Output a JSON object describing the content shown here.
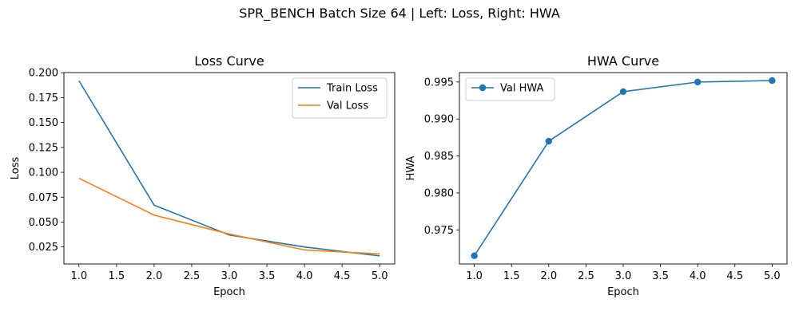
{
  "figure": {
    "suptitle": "SPR_BENCH Batch Size 64 | Left: Loss, Right: HWA"
  },
  "chart_data": [
    {
      "type": "line",
      "title": "Loss Curve",
      "xlabel": "Epoch",
      "ylabel": "Loss",
      "x": [
        1,
        2,
        3,
        4,
        5
      ],
      "xlim": [
        0.8,
        5.2
      ],
      "ylim": [
        0.0079,
        0.2002
      ],
      "xticks": [
        1.0,
        1.5,
        2.0,
        2.5,
        3.0,
        3.5,
        4.0,
        4.5,
        5.0
      ],
      "xtick_labels": [
        "1.0",
        "1.5",
        "2.0",
        "2.5",
        "3.0",
        "3.5",
        "4.0",
        "4.5",
        "5.0"
      ],
      "yticks": [
        0.025,
        0.05,
        0.075,
        0.1,
        0.125,
        0.15,
        0.175,
        0.2
      ],
      "ytick_labels": [
        "0.025",
        "0.050",
        "0.075",
        "0.100",
        "0.125",
        "0.150",
        "0.175",
        "0.200"
      ],
      "grid": false,
      "legend_position": "upper right",
      "series": [
        {
          "name": "Train Loss",
          "color": "#1f77b4",
          "values": [
            0.192,
            0.067,
            0.037,
            0.025,
            0.016
          ],
          "marker": "none"
        },
        {
          "name": "Val Loss",
          "color": "#ff7f0e",
          "values": [
            0.094,
            0.057,
            0.038,
            0.022,
            0.018
          ],
          "marker": "none"
        }
      ]
    },
    {
      "type": "line",
      "title": "HWA Curve",
      "xlabel": "Epoch",
      "ylabel": "HWA",
      "x": [
        1,
        2,
        3,
        4,
        5
      ],
      "xlim": [
        0.8,
        5.2
      ],
      "ylim": [
        0.97039,
        0.99628
      ],
      "xticks": [
        1.0,
        1.5,
        2.0,
        2.5,
        3.0,
        3.5,
        4.0,
        4.5,
        5.0
      ],
      "xtick_labels": [
        "1.0",
        "1.5",
        "2.0",
        "2.5",
        "3.0",
        "3.5",
        "4.0",
        "4.5",
        "5.0"
      ],
      "yticks": [
        0.975,
        0.98,
        0.985,
        0.99,
        0.995
      ],
      "ytick_labels": [
        "0.975",
        "0.980",
        "0.985",
        "0.990",
        "0.995"
      ],
      "grid": false,
      "legend_position": "upper left",
      "series": [
        {
          "name": "Val HWA",
          "color": "#1f77b4",
          "values": [
            0.9715,
            0.987,
            0.9937,
            0.995,
            0.9952
          ],
          "marker": "circle"
        }
      ]
    }
  ]
}
